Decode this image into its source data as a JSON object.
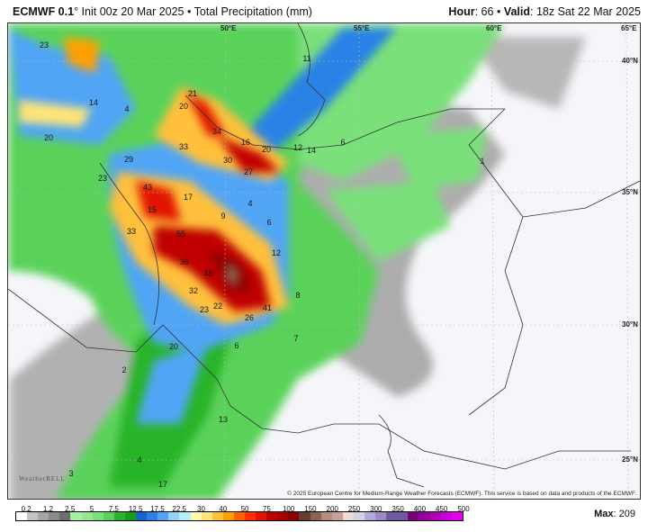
{
  "header": {
    "model": "ECMWF 0.1",
    "degree": "°",
    "init": "Init 00z 20 Mar 2025",
    "separator": "•",
    "product": "Total Precipitation (mm)",
    "hour_label": "Hour",
    "hour": "66",
    "valid_label": "Valid",
    "valid": "18z Sat 22 Mar 2025"
  },
  "map": {
    "longitudes": [
      "50°E",
      "55°E",
      "60°E",
      "65°E"
    ],
    "latitudes": [
      "40°N",
      "35°N",
      "30°N",
      "25°N"
    ],
    "value_labels": [
      "23",
      "14",
      "4",
      "20",
      "21",
      "20",
      "34",
      "16",
      "20",
      "12",
      "14",
      "33",
      "29",
      "30",
      "27",
      "23",
      "43",
      "17",
      "15",
      "4",
      "9",
      "33",
      "55",
      "6",
      "12",
      "11",
      "36",
      "48",
      "32",
      "22",
      "23",
      "41",
      "26",
      "8",
      "7",
      "6",
      "20",
      "2",
      "13",
      "4",
      "3",
      "17",
      "6",
      "1"
    ],
    "copyright": "© 2025 European Centre for Medium-Range Weather Forecasts (ECMWF). This service is based on data and products of the ECMWF.",
    "watermark": "WeatherBELL"
  },
  "legend": {
    "labels": [
      "0.2",
      "1.2",
      "2.5",
      "5",
      "7.5",
      "12.5",
      "17.5",
      "22.5",
      "30",
      "40",
      "50",
      "75",
      "100",
      "150",
      "200",
      "250",
      "300",
      "350",
      "400",
      "450",
      "500"
    ],
    "colors": [
      "#ffffff",
      "#c4c4c4",
      "#a6a6a6",
      "#8a8a8a",
      "#6e6e6e",
      "#a8f0a0",
      "#94e894",
      "#7ae07a",
      "#5ad25a",
      "#28b428",
      "#14a014",
      "#1464d2",
      "#2a82e6",
      "#50a5f5",
      "#96d2fa",
      "#b4f0fa",
      "#fffaaa",
      "#ffe478",
      "#ffc03c",
      "#ffa000",
      "#ff6000",
      "#ff3200",
      "#e11400",
      "#c00000",
      "#a50000",
      "#8c0000",
      "#643c32",
      "#8c6450",
      "#b48c82",
      "#c8a096",
      "#f0dcd2",
      "#d2d2e6",
      "#b4a8dc",
      "#9b8cc8",
      "#6e5aa0",
      "#6e5aa0",
      "#780078",
      "#9600a0",
      "#b400b4",
      "#c800dc",
      "#e600f0"
    ],
    "max_label": "Max",
    "max_value": "209"
  }
}
